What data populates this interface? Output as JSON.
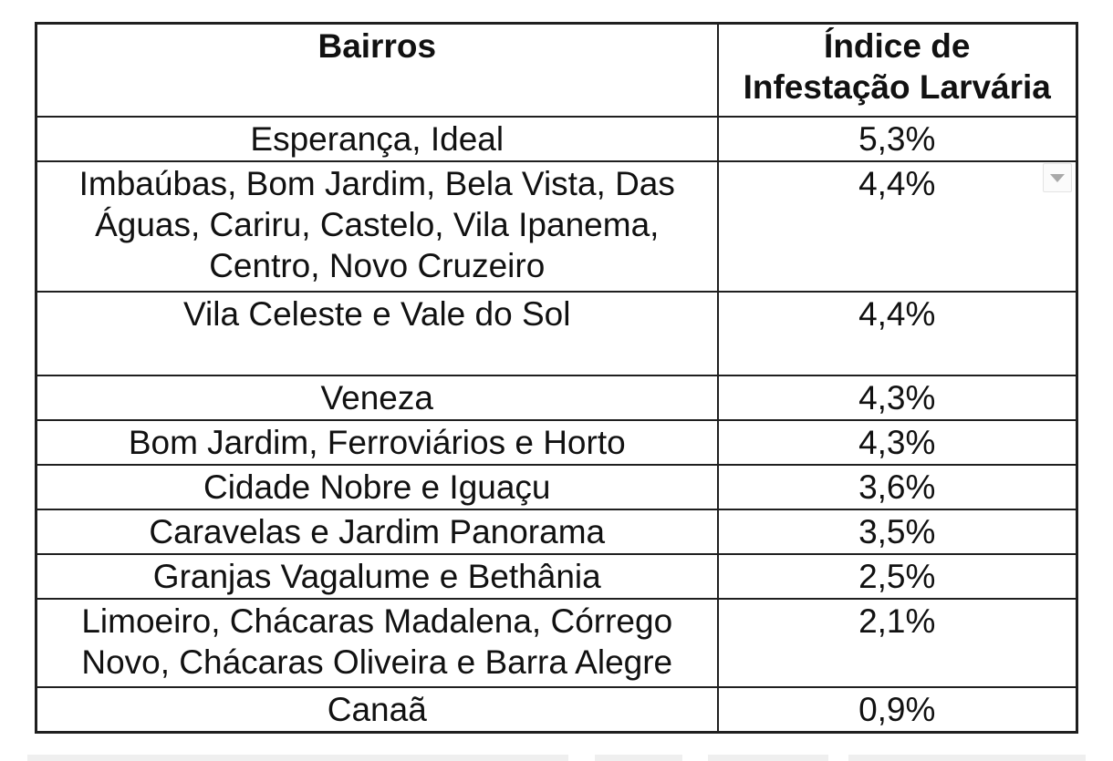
{
  "colors": {
    "table_border": "#1f1f1f",
    "text": "#111111",
    "dropdown_arrow": "#a9a9a9",
    "artifact_bar": "#efefef"
  },
  "icons": {
    "dropdown_arrow": "triangle-down"
  },
  "table": {
    "headers": {
      "bairros": "Bairros",
      "indice": "Índice de\nInfestação Larvária"
    },
    "rows": [
      {
        "bairros": "Esperança, Ideal",
        "indice": "5,3%"
      },
      {
        "bairros": "Imbaúbas, Bom Jardim, Bela Vista, Das\nÁguas, Cariru, Castelo, Vila Ipanema,\nCentro, Novo Cruzeiro",
        "indice": "4,4%"
      },
      {
        "bairros": "Vila Celeste e Vale do Sol",
        "indice": "4,4%"
      },
      {
        "bairros": "Veneza",
        "indice": "4,3%"
      },
      {
        "bairros": "Bom Jardim, Ferroviários e Horto",
        "indice": "4,3%"
      },
      {
        "bairros": "Cidade Nobre e Iguaçu",
        "indice": "3,6%"
      },
      {
        "bairros": "Caravelas e Jardim Panorama",
        "indice": "3,5%"
      },
      {
        "bairros": "Granjas Vagalume e Bethânia",
        "indice": "2,5%"
      },
      {
        "bairros": "Limoeiro, Chácaras Madalena, Córrego\nNovo, Chácaras Oliveira e Barra Alegre",
        "indice": "2,1%"
      },
      {
        "bairros": "Canaã",
        "indice": "0,9%"
      }
    ]
  }
}
